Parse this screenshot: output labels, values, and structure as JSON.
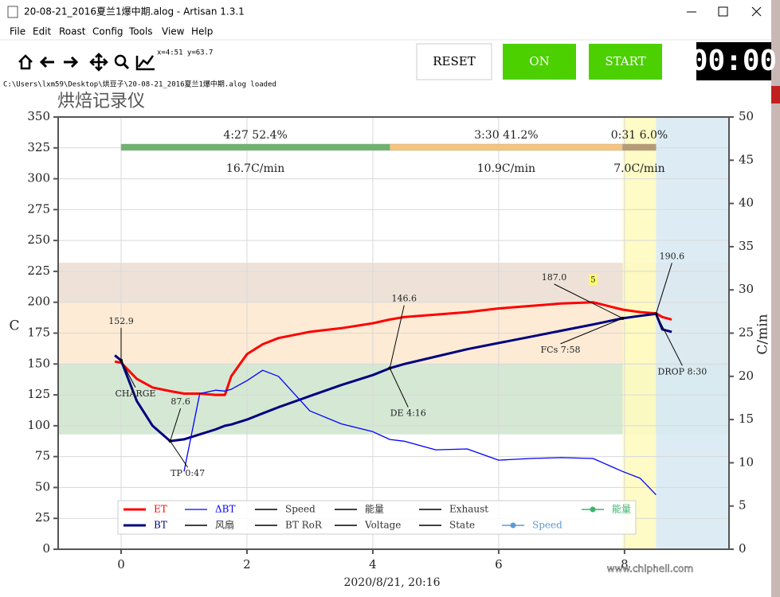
{
  "window": {
    "title": "20-08-21_2016夏兰1爆中期.alog - Artisan 1.3.1"
  },
  "menu": [
    "File",
    "Edit",
    "Roast",
    "Config",
    "Tools",
    "View",
    "Help"
  ],
  "toolbar": {
    "coords": "x=4:51 y=63.7"
  },
  "buttons": [
    "RESET",
    "ON",
    "START"
  ],
  "timer": "00:00",
  "status": "C:\\Users\\lxm59\\Desktop\\烘豆子\\20-08-21_2016夏兰1爆中期.alog  loaded",
  "watermark": "www.chiphell.com",
  "chart_data": {
    "type": "line",
    "title": "烘焙记录仪",
    "x_label": "2020/8/21, 20:16",
    "y_label": "C",
    "y2_label": "C/min",
    "xlim": [
      -1,
      9.66
    ],
    "xticks": [
      0,
      2,
      4,
      6,
      8
    ],
    "ylim": [
      0,
      350
    ],
    "yticks": [
      0,
      25,
      50,
      75,
      100,
      125,
      150,
      175,
      200,
      225,
      250,
      275,
      300,
      325,
      350
    ],
    "y2lim": [
      0,
      50
    ],
    "y2ticks": [
      0,
      5,
      10,
      15,
      20,
      25,
      30,
      35,
      40,
      45,
      50
    ],
    "grid": true,
    "x": [
      -0.1,
      0,
      0.25,
      0.5,
      0.78,
      1,
      1.25,
      1.5,
      1.65,
      1.75,
      2,
      2.25,
      2.5,
      3,
      3.5,
      4,
      4.27,
      4.5,
      5,
      5.5,
      6,
      6.5,
      7,
      7.5,
      7.97,
      8.25,
      8.5,
      8.6,
      8.75
    ],
    "series": [
      {
        "name": "ET",
        "color": "#ff0000",
        "width": 3,
        "values": [
          152,
          151,
          138,
          131,
          128,
          126,
          126,
          125,
          125,
          140,
          158,
          166,
          171,
          176,
          179,
          183,
          186,
          188,
          190,
          192,
          195,
          197,
          199,
          200,
          194,
          192,
          191,
          188,
          186
        ]
      },
      {
        "name": "BT",
        "color": "#00007f",
        "width": 3,
        "values": [
          157,
          152.9,
          120,
          100,
          87.6,
          89,
          93,
          97,
          100,
          101,
          105,
          110,
          115,
          124,
          133,
          141,
          146.6,
          150,
          156,
          162,
          167,
          172,
          177,
          182,
          187,
          189,
          190.6,
          178,
          176
        ]
      },
      {
        "name": "ΔBT",
        "color": "#0000ff",
        "width": 1.3,
        "axis": "y2",
        "values": [
          null,
          null,
          null,
          null,
          null,
          9,
          18,
          18.4,
          18.3,
          18.5,
          19.5,
          20.7,
          20,
          16,
          14.5,
          13.6,
          12.7,
          12.5,
          11.5,
          11.6,
          10.3,
          10.5,
          10.6,
          10.5,
          9,
          8.2,
          6.3,
          null,
          null
        ]
      }
    ],
    "bands": [
      {
        "from": 93,
        "to": 150,
        "color": "#d5e8d4"
      },
      {
        "from": 150,
        "to": 200,
        "color": "#fdebd5"
      },
      {
        "from": 200,
        "to": 232,
        "color": "#eee2d8"
      }
    ],
    "events": [
      {
        "label": "CHARGE",
        "x": 0,
        "value": 152.9,
        "value_label": "152.9"
      },
      {
        "label": "TP 0:47",
        "x": 0.78,
        "value": 87.6,
        "value_label": "87.6"
      },
      {
        "label": "DE 4:16",
        "x": 4.27,
        "value": 146.6,
        "value_label": "146.6"
      },
      {
        "label": "FCs 7:58",
        "x": 7.97,
        "value": 187.0,
        "value_label": "187.0"
      },
      {
        "label": "DROP 8:30",
        "x": 8.5,
        "value": 190.6,
        "value_label": "190.6"
      }
    ],
    "phases": [
      {
        "time": "4:27  52.4%",
        "ror": "16.7C/min",
        "color": "#6db36d"
      },
      {
        "time": "3:30  41.2%",
        "ror": "10.9C/min",
        "color": "#f7c47a"
      },
      {
        "time": "0:31  6.0%",
        "ror": "7.0C/min",
        "color": "#b89a73"
      }
    ],
    "annotations": [
      {
        "text": "5",
        "x": 7.5,
        "y": 218
      }
    ],
    "legend_extra": [
      {
        "name": "Speed",
        "color": "#000000"
      },
      {
        "name": "能量",
        "color": "#000000"
      },
      {
        "name": "Exhaust",
        "color": "#000000"
      },
      {
        "name": "能量",
        "color": "#3cb371",
        "marker": true
      },
      {
        "name": "风扇",
        "color": "#000000"
      },
      {
        "name": "BT RoR",
        "color": "#000000"
      },
      {
        "name": "Voltage",
        "color": "#000000"
      },
      {
        "name": "State",
        "color": "#000000"
      },
      {
        "name": "Speed",
        "color": "#5b9bd5",
        "marker": true
      }
    ]
  }
}
